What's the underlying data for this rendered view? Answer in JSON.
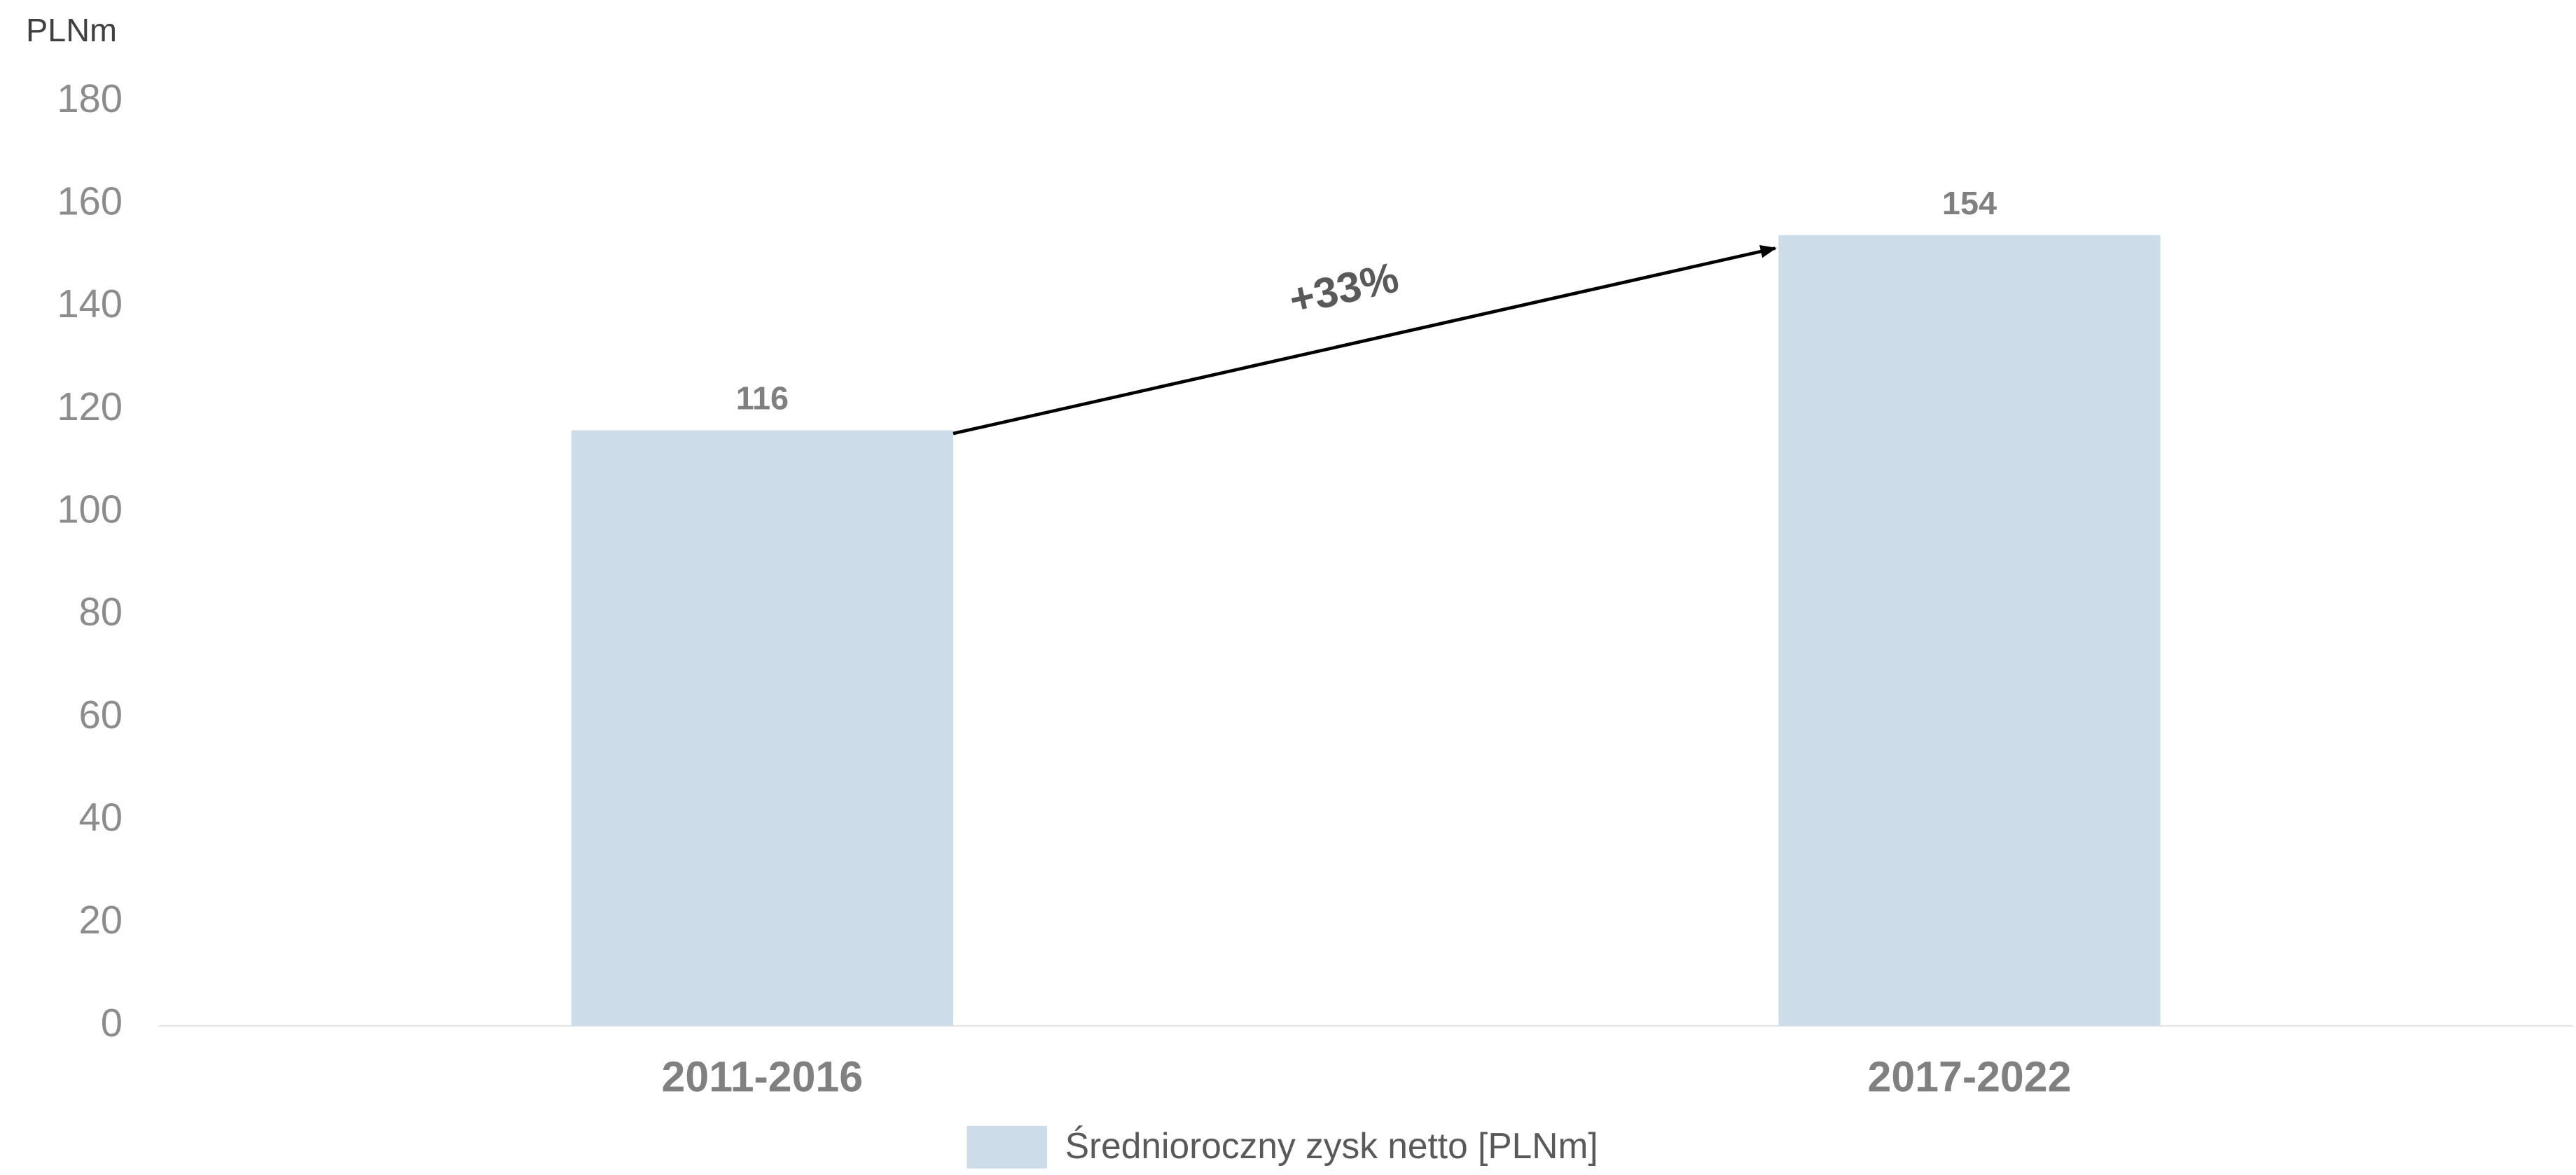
{
  "chart_data": {
    "type": "bar",
    "y_axis_label": "PLNm",
    "categories": [
      "2011-2016",
      "2017-2022"
    ],
    "series": [
      {
        "name": "Średnioroczny zysk netto [PLNm]",
        "color": "#ccdce8",
        "values": [
          116,
          154
        ]
      }
    ],
    "ylim": [
      0,
      180
    ],
    "yticks": [
      0,
      20,
      40,
      60,
      80,
      100,
      120,
      140,
      160,
      180
    ],
    "annotation": "+33%",
    "grid": false,
    "legend": "bottom"
  }
}
